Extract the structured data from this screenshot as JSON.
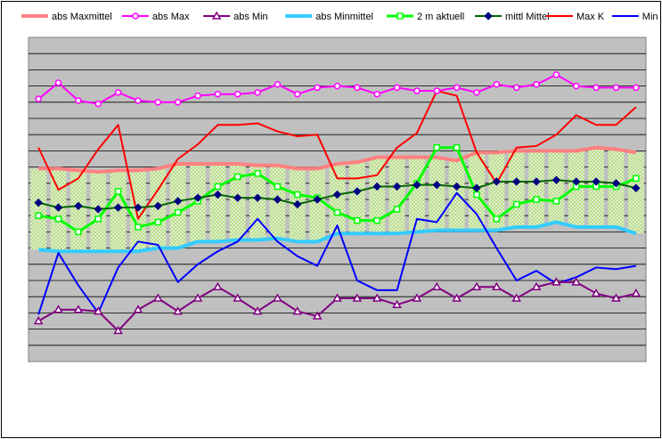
{
  "chart_data": {
    "type": "line",
    "title": "",
    "xlabel": "",
    "ylabel": "",
    "x": [
      1,
      2,
      3,
      4,
      5,
      6,
      7,
      8,
      9,
      10,
      11,
      12,
      13,
      14,
      15,
      16,
      17,
      18,
      19,
      20,
      21,
      22,
      23,
      24,
      25,
      26,
      27,
      28,
      29,
      30,
      31
    ],
    "ylim": [
      0,
      20
    ],
    "grid": true,
    "legend_position": "top",
    "band": {
      "lower_series": "abs Minmittel",
      "upper_series": "abs Maxmittel",
      "fill": "#b9dc8c"
    },
    "series": [
      {
        "name": "abs Maxmittel",
        "color": "#ff8080",
        "marker": "none",
        "width": 4,
        "values": [
          11.9,
          11.9,
          11.8,
          11.7,
          11.8,
          11.8,
          11.9,
          12.2,
          12.2,
          12.2,
          12.2,
          12.1,
          12.1,
          11.9,
          11.9,
          12.2,
          12.3,
          12.6,
          12.6,
          12.6,
          12.6,
          12.4,
          12.9,
          12.9,
          13.0,
          13.0,
          13.0,
          13.0,
          13.2,
          13.1,
          12.9
        ]
      },
      {
        "name": "abs Max",
        "color": "#ff00ff",
        "marker": "circle",
        "width": 2,
        "values": [
          16.2,
          17.2,
          16.1,
          15.9,
          16.6,
          16.1,
          16.0,
          16.0,
          16.4,
          16.5,
          16.5,
          16.6,
          17.1,
          16.5,
          16.9,
          17.0,
          16.9,
          16.5,
          16.9,
          16.7,
          16.7,
          16.9,
          16.6,
          17.1,
          16.9,
          17.1,
          17.7,
          17.0,
          16.9,
          16.9,
          16.9
        ]
      },
      {
        "name": "abs Min",
        "color": "#800080",
        "marker": "triangle",
        "width": 2,
        "values": [
          2.5,
          3.2,
          3.2,
          3.1,
          1.9,
          3.2,
          3.9,
          3.1,
          3.9,
          4.6,
          3.9,
          3.1,
          3.9,
          3.1,
          2.8,
          3.9,
          3.9,
          3.9,
          3.5,
          3.9,
          4.6,
          3.9,
          4.6,
          4.6,
          3.9,
          4.6,
          4.9,
          4.9,
          4.2,
          3.9,
          4.2
        ]
      },
      {
        "name": "abs Minmittel",
        "color": "#33ccff",
        "marker": "none",
        "width": 4,
        "values": [
          6.9,
          6.8,
          6.8,
          6.8,
          6.8,
          6.8,
          7.0,
          7.0,
          7.4,
          7.4,
          7.5,
          7.5,
          7.6,
          7.4,
          7.4,
          7.9,
          7.9,
          7.9,
          7.9,
          8.0,
          8.1,
          8.1,
          8.1,
          8.1,
          8.3,
          8.3,
          8.6,
          8.3,
          8.3,
          8.3,
          7.9
        ]
      },
      {
        "name": "2 m aktuell",
        "color": "#00ff00",
        "marker": "square",
        "width": 3,
        "values": [
          9.0,
          8.8,
          8.0,
          8.8,
          10.5,
          8.3,
          8.6,
          9.2,
          9.9,
          10.8,
          11.4,
          11.6,
          10.8,
          10.3,
          10.1,
          9.2,
          8.7,
          8.7,
          9.4,
          11.0,
          13.2,
          13.2,
          10.3,
          8.8,
          9.7,
          10.0,
          9.9,
          10.8,
          10.8,
          10.8,
          11.3
        ]
      },
      {
        "name": "mittl Mittel",
        "color": "#006600",
        "marker": "diamond",
        "width": 2,
        "values": [
          9.8,
          9.5,
          9.6,
          9.4,
          9.5,
          9.5,
          9.6,
          9.9,
          10.1,
          10.3,
          10.1,
          10.1,
          10.0,
          9.7,
          10.0,
          10.3,
          10.5,
          10.8,
          10.8,
          10.9,
          10.9,
          10.8,
          10.7,
          11.1,
          11.1,
          11.1,
          11.2,
          11.1,
          11.1,
          11.0,
          10.7
        ]
      },
      {
        "name": "Max K",
        "color": "#ff0000",
        "marker": "none",
        "width": 2,
        "values": [
          13.2,
          10.6,
          11.3,
          13.1,
          14.6,
          8.8,
          10.6,
          12.5,
          13.4,
          14.6,
          14.6,
          14.7,
          14.2,
          13.9,
          14.0,
          11.3,
          11.3,
          11.5,
          13.2,
          14.1,
          16.7,
          16.4,
          12.9,
          11.0,
          13.2,
          13.3,
          14.0,
          15.2,
          14.6,
          14.6,
          15.7
        ]
      },
      {
        "name": "Min K",
        "color": "#0000ff",
        "marker": "none",
        "width": 2,
        "values": [
          2.9,
          6.7,
          4.7,
          3.0,
          5.8,
          7.4,
          7.2,
          4.9,
          6.0,
          6.8,
          7.4,
          8.8,
          7.4,
          6.5,
          5.9,
          8.4,
          5.0,
          4.4,
          4.4,
          8.8,
          8.6,
          10.4,
          9.1,
          7.0,
          5.0,
          5.6,
          4.8,
          5.2,
          5.8,
          5.7,
          5.9
        ]
      }
    ]
  }
}
